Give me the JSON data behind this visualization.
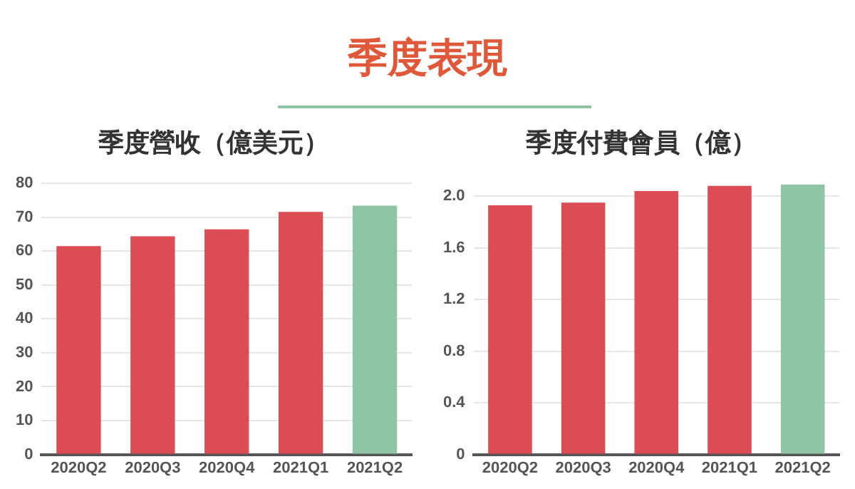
{
  "chart_data": [
    {
      "type": "other",
      "title": "季度表現"
    },
    {
      "type": "bar",
      "title": "季度營收（億美元）",
      "categories": [
        "2020Q2",
        "2020Q3",
        "2020Q4",
        "2021Q1",
        "2021Q2"
      ],
      "values": [
        61.5,
        64.4,
        66.4,
        71.6,
        73.4
      ],
      "colors": [
        "#db4c55",
        "#db4c55",
        "#db4c55",
        "#db4c55",
        "#8fc4a5"
      ],
      "ylim": [
        0,
        80
      ],
      "yticks": [
        0,
        10,
        20,
        30,
        40,
        50,
        60,
        70,
        80
      ],
      "grid": "y",
      "legend": false
    },
    {
      "type": "bar",
      "title": "季度付費會員（億）",
      "categories": [
        "2020Q2",
        "2020Q3",
        "2020Q4",
        "2021Q1",
        "2021Q2"
      ],
      "values": [
        1.93,
        1.95,
        2.04,
        2.08,
        2.09
      ],
      "colors": [
        "#db4c55",
        "#db4c55",
        "#db4c55",
        "#db4c55",
        "#8fc4a5"
      ],
      "ylim": [
        0,
        2.1
      ],
      "yticks": [
        0,
        0.4,
        0.8,
        1.2,
        1.6,
        {
          "value": 2.0,
          "label": "2.0"
        }
      ],
      "grid": "y",
      "legend": false
    }
  ]
}
